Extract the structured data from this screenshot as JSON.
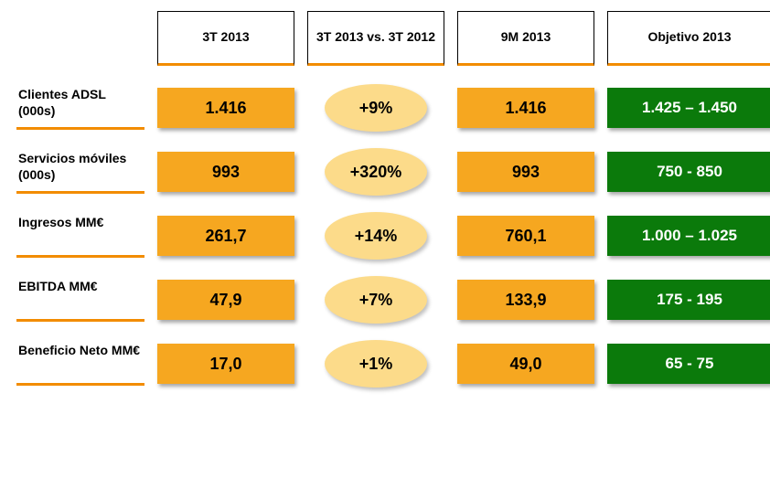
{
  "columns": [
    {
      "label": "3T 2013"
    },
    {
      "label": "3T 2013 vs. 3T 2012"
    },
    {
      "label": "9M 2013"
    },
    {
      "label": "Objetivo 2013"
    }
  ],
  "rows": [
    {
      "label": "Clientes ADSL (000s)",
      "q3": "1.416",
      "delta": "+9%",
      "ninem": "1.416",
      "target": "1.425 – 1.450"
    },
    {
      "label": "Servicios móviles (000s)",
      "q3": "993",
      "delta": "+320%",
      "ninem": "993",
      "target": "750 - 850"
    },
    {
      "label": "Ingresos MM€",
      "q3": "261,7",
      "delta": "+14%",
      "ninem": "760,1",
      "target": "1.000 – 1.025"
    },
    {
      "label": "EBITDA MM€",
      "q3": "47,9",
      "delta": "+7%",
      "ninem": "133,9",
      "target": "175 - 195"
    },
    {
      "label": "Beneficio Neto MM€",
      "q3": "17,0",
      "delta": "+1%",
      "ninem": "49,0",
      "target": "65 - 75"
    }
  ],
  "style": {
    "orange_fill": "#f6a720",
    "orange_underline": "#f28c00",
    "ellipse_fill": "#fcdb8a",
    "green_fill": "#0b7a0b",
    "header_border": "#000000",
    "background": "#ffffff",
    "font_family": "Verdana, Arial, sans-serif",
    "header_fontsize": 14,
    "label_fontsize": 14,
    "cell_fontsize": 18,
    "target_fontsize": 17
  }
}
